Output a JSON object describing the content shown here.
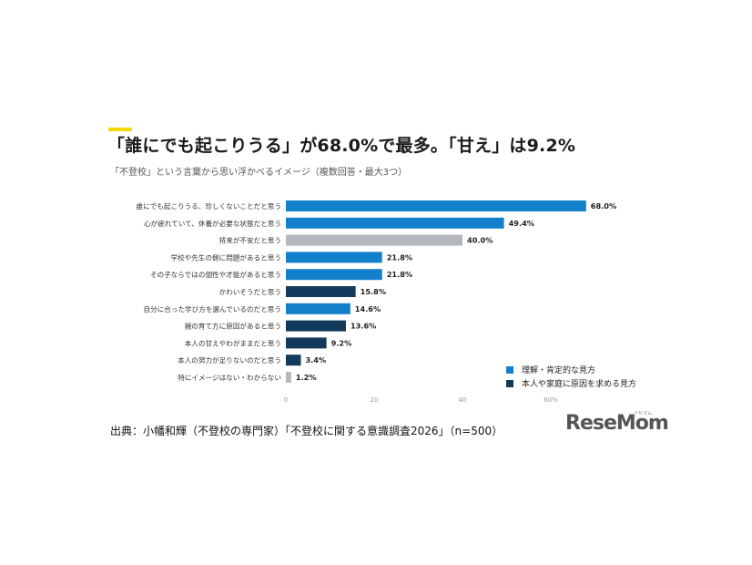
{
  "title": "「誰にでも起こりうる」が68.0%で最多。「甘え」は9.2%",
  "subtitle": "「不登校」という言葉から思い浮かべるイメージ（複数回答・最大3つ）",
  "source": "出典：小幡和輝（不登校の専門家）「不登校に関する意識調査2026」（n=500）",
  "logo": {
    "main": "ReseMom",
    "sub": "リセマム"
  },
  "colors": {
    "positive": "#1380cc",
    "neutral": "#b5b9bf",
    "negative": "#123a5c",
    "accent": "#f5d800"
  },
  "legend": [
    {
      "label": "理解・肯定的な見方",
      "color": "#1380cc"
    },
    {
      "label": "本人や家庭に原因を求める見方",
      "color": "#123a5c"
    }
  ],
  "chart_data": {
    "type": "bar",
    "orientation": "horizontal",
    "categories": [
      "誰にでも起こりうる、珍しくないことだと思う",
      "心が疲れていて、休養が必要な状態だと思う",
      "将来が不安だと思う",
      "学校や先生の側に問題があると思う",
      "その子ならではの個性や才能があると思う",
      "かわいそうだと思う",
      "自分に合った学び方を選んでいるのだと思う",
      "親の育て方に原因があると思う",
      "本人の甘えやわがままだと思う",
      "本人の努力が足りないのだと思う",
      "特にイメージはない・わからない"
    ],
    "values": [
      68.0,
      49.4,
      40.0,
      21.8,
      21.8,
      15.8,
      14.6,
      13.6,
      9.2,
      3.4,
      1.2
    ],
    "value_labels": [
      "68.0%",
      "49.4%",
      "40.0%",
      "21.8%",
      "21.8%",
      "15.8%",
      "14.6%",
      "13.6%",
      "9.2%",
      "3.4%",
      "1.2%"
    ],
    "groups": [
      "positive",
      "positive",
      "neutral",
      "positive",
      "positive",
      "negative",
      "positive",
      "negative",
      "negative",
      "negative",
      "neutral"
    ],
    "x_ticks": [
      "0",
      "20",
      "40",
      "60%"
    ],
    "xlim": [
      0,
      60
    ],
    "grid": false,
    "legend_position": "bottom-right"
  }
}
